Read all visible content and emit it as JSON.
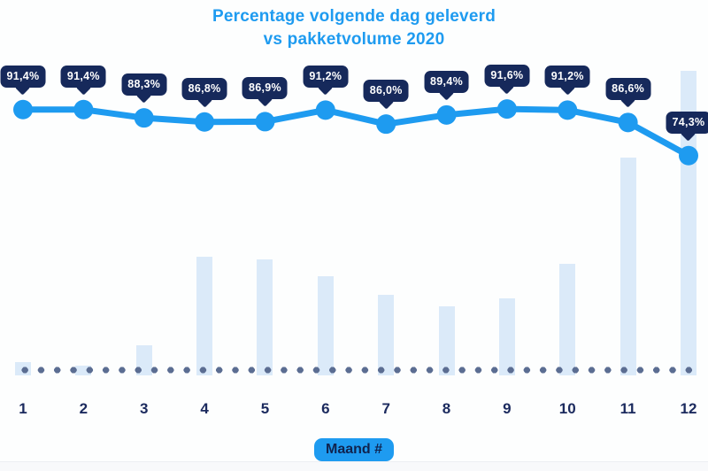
{
  "title": {
    "line1": "Percentage volgende dag geleverd",
    "line2": "vs pakketvolume 2020"
  },
  "x_axis": {
    "badge_label": "Maand #"
  },
  "colors": {
    "accent_blue": "#1E9BF0",
    "callout_navy": "#16295B",
    "bar_fill_light_blue": "#DBEAF9",
    "baseline_dot_slate": "#5B6D92",
    "tick_label_navy": "#1B2A5E",
    "background": "#FDFEFE"
  },
  "chart_data": {
    "type": "combo",
    "title": "Percentage volgende dag geleverd vs pakketvolume 2020",
    "categories": [
      "1",
      "2",
      "3",
      "4",
      "5",
      "6",
      "7",
      "8",
      "9",
      "10",
      "11",
      "12"
    ],
    "xlabel": "Maand #",
    "ylabel": "",
    "grid": false,
    "legend": "none",
    "series": [
      {
        "name": "Percentage volgende dag geleverd",
        "type": "line",
        "unit": "%",
        "ylim": [
          70,
          95
        ],
        "values": [
          91.4,
          91.4,
          88.3,
          86.8,
          86.9,
          91.2,
          86.0,
          89.4,
          91.6,
          91.2,
          86.6,
          74.3
        ],
        "labels": [
          "91,4%",
          "91,4%",
          "88,3%",
          "86,8%",
          "86,9%",
          "91,2%",
          "86,0%",
          "89,4%",
          "91,6%",
          "91,2%",
          "86,6%",
          "74,3%"
        ]
      },
      {
        "name": "Pakketvolume 2020",
        "type": "bar",
        "unit": "relative volume, estimated from bar heights (max = 100)",
        "values": [
          4.4,
          3.2,
          9.9,
          39.0,
          38.1,
          32.6,
          26.5,
          22.7,
          25.3,
          36.6,
          71.5,
          100
        ]
      }
    ]
  }
}
